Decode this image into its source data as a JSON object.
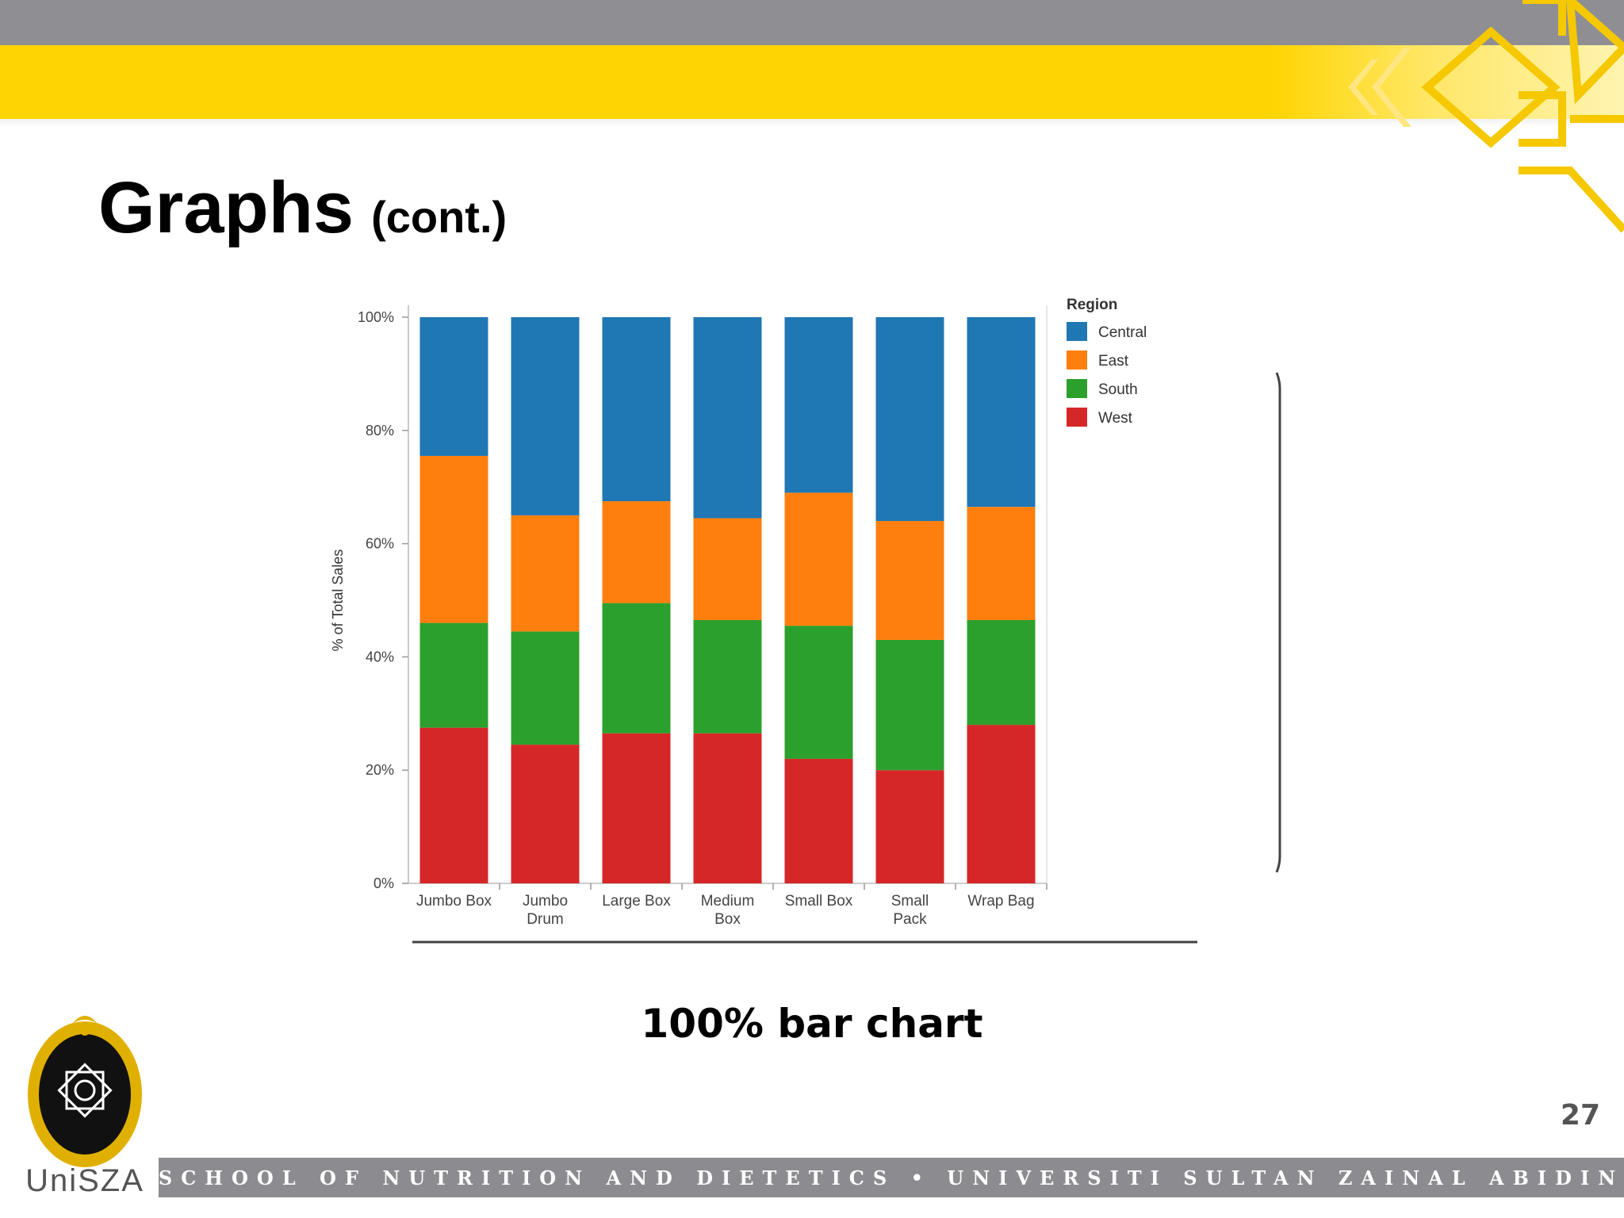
{
  "slide": {
    "title": "Graphs",
    "title_suffix": "(cont.)",
    "caption": "100% bar chart",
    "page_number": "27",
    "footer": "SCHOOL OF NUTRITION AND DIETETICS • UNIVERSITI SULTAN ZAINAL ABIDIN",
    "logo_text": "UniSZA"
  },
  "colors": {
    "header_gray": "#8e8e93",
    "header_yellow": "#ffd400",
    "footer_gray": "#8c8c90"
  },
  "chart_data": {
    "type": "bar",
    "stacked": true,
    "percent": true,
    "title": "",
    "xlabel": "",
    "ylabel": "% of Total Sales",
    "ylim": [
      0,
      100
    ],
    "yticks": [
      "0%",
      "20%",
      "40%",
      "60%",
      "80%",
      "100%"
    ],
    "categories": [
      "Jumbo Box",
      "Jumbo Drum",
      "Large Box",
      "Medium Box",
      "Small Box",
      "Small Pack",
      "Wrap Bag"
    ],
    "legend_title": "Region",
    "legend_position": "top-right",
    "series": [
      {
        "name": "West",
        "color": "#d62728",
        "values": [
          27.5,
          24.5,
          26.5,
          26.5,
          22,
          20,
          28
        ]
      },
      {
        "name": "South",
        "color": "#2ca02c",
        "values": [
          18.5,
          20,
          23,
          20,
          23.5,
          23,
          18.5
        ]
      },
      {
        "name": "East",
        "color": "#ff7f0e",
        "values": [
          29.5,
          20.5,
          18,
          18,
          23.5,
          21,
          20
        ]
      },
      {
        "name": "Central",
        "color": "#1f77b4",
        "values": [
          24.5,
          35,
          32.5,
          35.5,
          31,
          36,
          33.5
        ]
      }
    ],
    "legend_order": [
      "Central",
      "East",
      "South",
      "West"
    ]
  }
}
